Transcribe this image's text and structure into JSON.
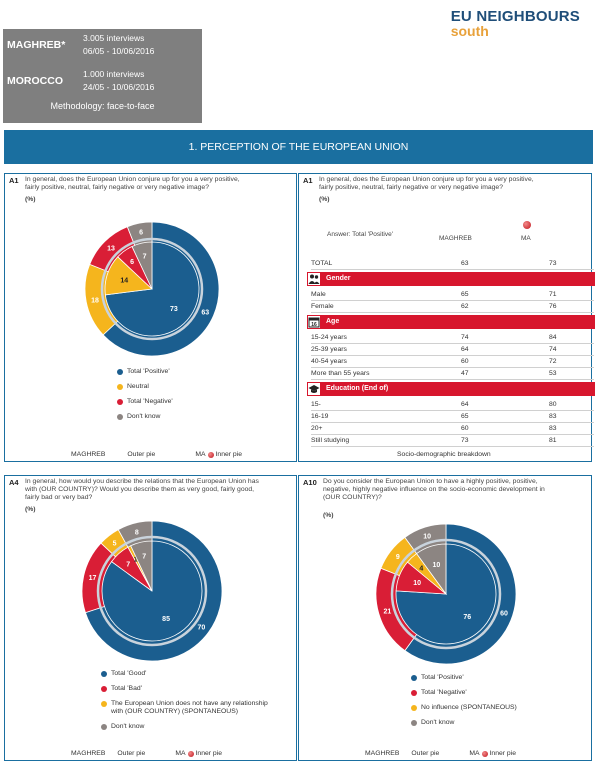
{
  "brand": {
    "line1": "EU NEIGHBOURS",
    "line2": "south"
  },
  "header": {
    "r1_name": "MAGHREB*",
    "r1_interviews": "3.005 interviews",
    "r1_dates": "06/05 - 10/06/2016",
    "r2_name": "MOROCCO",
    "r2_interviews": "1.000 interviews",
    "r2_dates": "24/05 - 10/06/2016",
    "methodology": "Methodology: face-to-face"
  },
  "section_title": "1. PERCEPTION OF THE EUROPEAN UNION",
  "colors": {
    "positive": "#1b5e8f",
    "neutral": "#f5b51d",
    "negative": "#d91e36",
    "dontknow": "#8c8582",
    "section": "#1a6fa0"
  },
  "panel_a1": {
    "code": "A1",
    "question": [
      "In general, does the European Union conjure up for you a very positive,",
      "fairly positive, neutral, fairly negative or very negative image?"
    ],
    "pct": "(%)",
    "legend": [
      "Total 'Positive'",
      "Neutral",
      "Total 'Negative'",
      "Don't know"
    ],
    "footer": {
      "maghreb": "MAGHREB",
      "outer": "Outer pie",
      "ma": "MA",
      "inner": "Inner pie"
    }
  },
  "panel_a1_table": {
    "code": "A1",
    "question": [
      "In general, does the European Union conjure up for you a very positive,",
      "fairly positive, neutral, fairly negative or very negative image?"
    ],
    "pct": "(%)",
    "answer_label": "Answer: Total 'Positive'",
    "col1": "MAGHREB",
    "col2": "MA",
    "total": {
      "label": "TOTAL",
      "v1": "63",
      "v2": "73"
    },
    "sections": [
      {
        "title": "Gender",
        "icon": "people-icon",
        "rows": [
          {
            "label": "Male",
            "v1": "65",
            "v2": "71"
          },
          {
            "label": "Female",
            "v1": "62",
            "v2": "76"
          }
        ]
      },
      {
        "title": "Age",
        "icon": "calendar-icon",
        "icon_text": "16",
        "rows": [
          {
            "label": "15-24 years",
            "v1": "74",
            "v2": "84"
          },
          {
            "label": "25-39 years",
            "v1": "64",
            "v2": "74"
          },
          {
            "label": "40-54 years",
            "v1": "60",
            "v2": "72"
          },
          {
            "label": "More than 55 years",
            "v1": "47",
            "v2": "53"
          }
        ]
      },
      {
        "title": "Education (End of)",
        "icon": "graduation-cap-icon",
        "rows": [
          {
            "label": "15-",
            "v1": "64",
            "v2": "80"
          },
          {
            "label": "16-19",
            "v1": "65",
            "v2": "83"
          },
          {
            "label": "20+",
            "v1": "60",
            "v2": "83"
          },
          {
            "label": "Still studying",
            "v1": "73",
            "v2": "81"
          }
        ]
      }
    ],
    "footer": "Socio-demographic breakdown"
  },
  "panel_a4": {
    "code": "A4",
    "question": [
      "In general, how would you describe the relations that the European Union has",
      "with (OUR COUNTRY)? Would you describe them as very good, fairly good,",
      "fairly bad or very bad?"
    ],
    "pct": "(%)",
    "legend": [
      "Total 'Good'",
      "Total 'Bad'",
      "The European Union does not have any relationship",
      "with (OUR COUNTRY) (SPONTANEOUS)",
      "Don't know"
    ],
    "footer": {
      "maghreb": "MAGHREB",
      "outer": "Outer pie",
      "ma": "MA",
      "inner": "Inner pie"
    }
  },
  "panel_a10": {
    "code": "A10",
    "question": [
      "Do you consider the European Union to have a highly positive, positive,",
      "negative, highly negative influence on the socio-economic development in",
      "(OUR COUNTRY)?"
    ],
    "pct": "(%)",
    "legend": [
      "Total 'Positive'",
      "Total 'Negative'",
      "No influence (SPONTANEOUS)",
      "Don't know"
    ],
    "footer": {
      "maghreb": "MAGHREB",
      "outer": "Outer pie",
      "ma": "MA",
      "inner": "Inner pie"
    }
  },
  "chart_data": [
    {
      "type": "pie",
      "title": "",
      "categories": [
        "Total 'Positive'",
        "Neutral",
        "Total 'Negative'",
        "Don't know"
      ],
      "series": [
        {
          "name": "MAGHREB",
          "values": [
            63,
            18,
            13,
            6
          ]
        },
        {
          "name": "MA",
          "values": [
            73,
            14,
            6,
            7
          ]
        }
      ]
    },
    {
      "type": "pie",
      "title": "",
      "categories": [
        "Total 'Good'",
        "Total 'Bad'",
        "The European Union does not have any relationship with (OUR COUNTRY) (SPONTANEOUS)",
        "Don't know"
      ],
      "series": [
        {
          "name": "MAGHREB",
          "values": [
            70,
            17,
            5,
            8
          ]
        },
        {
          "name": "MA",
          "values": [
            85,
            7,
            1,
            7
          ]
        }
      ]
    },
    {
      "type": "pie",
      "title": "",
      "categories": [
        "Total 'Positive'",
        "Total 'Negative'",
        "No influence (SPONTANEOUS)",
        "Don't know"
      ],
      "series": [
        {
          "name": "MAGHREB",
          "values": [
            60,
            21,
            9,
            10
          ]
        },
        {
          "name": "MA",
          "values": [
            76,
            10,
            4,
            10
          ]
        }
      ]
    }
  ]
}
